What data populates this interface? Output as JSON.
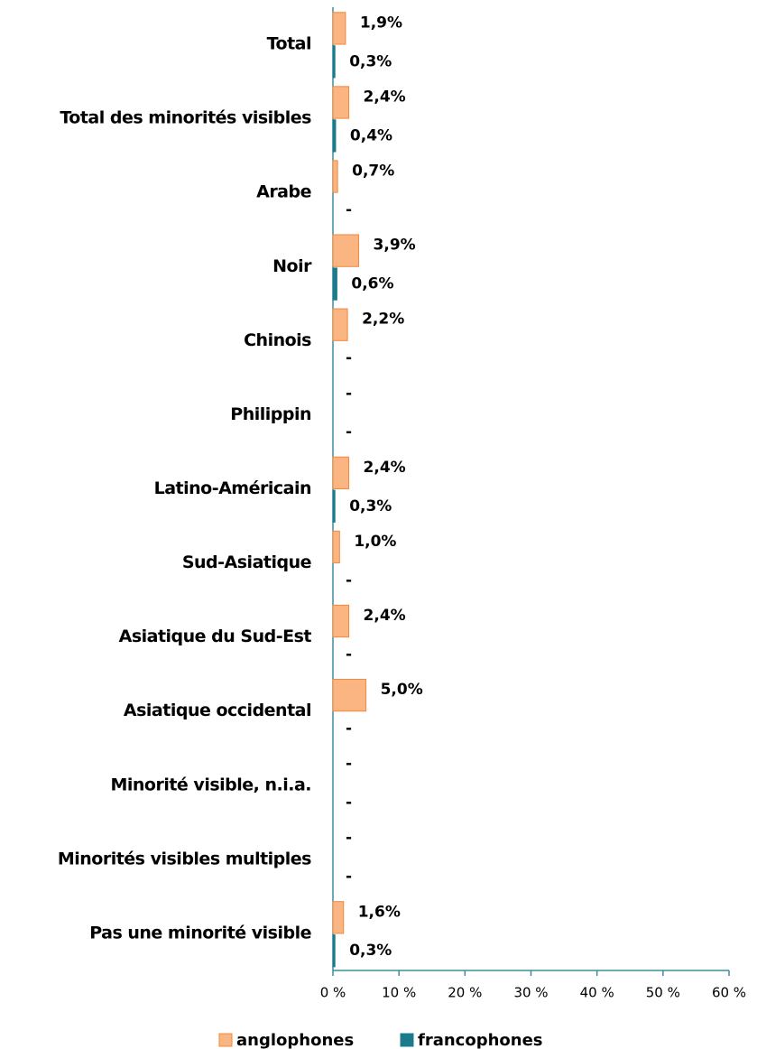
{
  "chart_data": {
    "type": "bar",
    "orientation": "horizontal",
    "categories": [
      "Total",
      "Total des minorités visibles",
      "Arabe",
      "Noir",
      "Chinois",
      "Philippin",
      "Latino-Américain",
      "Sud-Asiatique",
      "Asiatique du Sud-Est",
      "Asiatique occidental",
      "Minorité visible, n.i.a.",
      "Minorités visibles multiples",
      "Pas une minorité visible"
    ],
    "series": [
      {
        "name": "anglophones",
        "color": "#fbb583",
        "edge": "#ef8a3d",
        "values": [
          1.9,
          2.4,
          0.7,
          3.9,
          2.2,
          null,
          2.4,
          1.0,
          2.4,
          5.0,
          null,
          null,
          1.6
        ],
        "value_labels": [
          "1,9%",
          "2,4%",
          "0,7%",
          "3,9%",
          "2,2%",
          "-",
          "2,4%",
          "1,0%",
          "2,4%",
          "5,0%",
          "-",
          "-",
          "1,6%"
        ]
      },
      {
        "name": "francophones",
        "color": "#1b7b8c",
        "edge": "#1b7b8c",
        "values": [
          0.3,
          0.4,
          null,
          0.6,
          null,
          null,
          0.3,
          null,
          null,
          null,
          null,
          null,
          0.3
        ],
        "value_labels": [
          "0,3%",
          "0,4%",
          "-",
          "0,6%",
          "-",
          "-",
          "0,3%",
          "-",
          "-",
          "-",
          "-",
          "-",
          "0,3%"
        ]
      }
    ],
    "xlim": [
      0,
      60
    ],
    "xticks": [
      {
        "value": 0,
        "label": "0 %"
      },
      {
        "value": 10,
        "label": "10 %"
      },
      {
        "value": 20,
        "label": "20 %"
      },
      {
        "value": 30,
        "label": "30 %"
      },
      {
        "value": 40,
        "label": "40 %"
      },
      {
        "value": 50,
        "label": "50 %"
      },
      {
        "value": 60,
        "label": "60 %"
      }
    ],
    "legend": "bottom"
  }
}
